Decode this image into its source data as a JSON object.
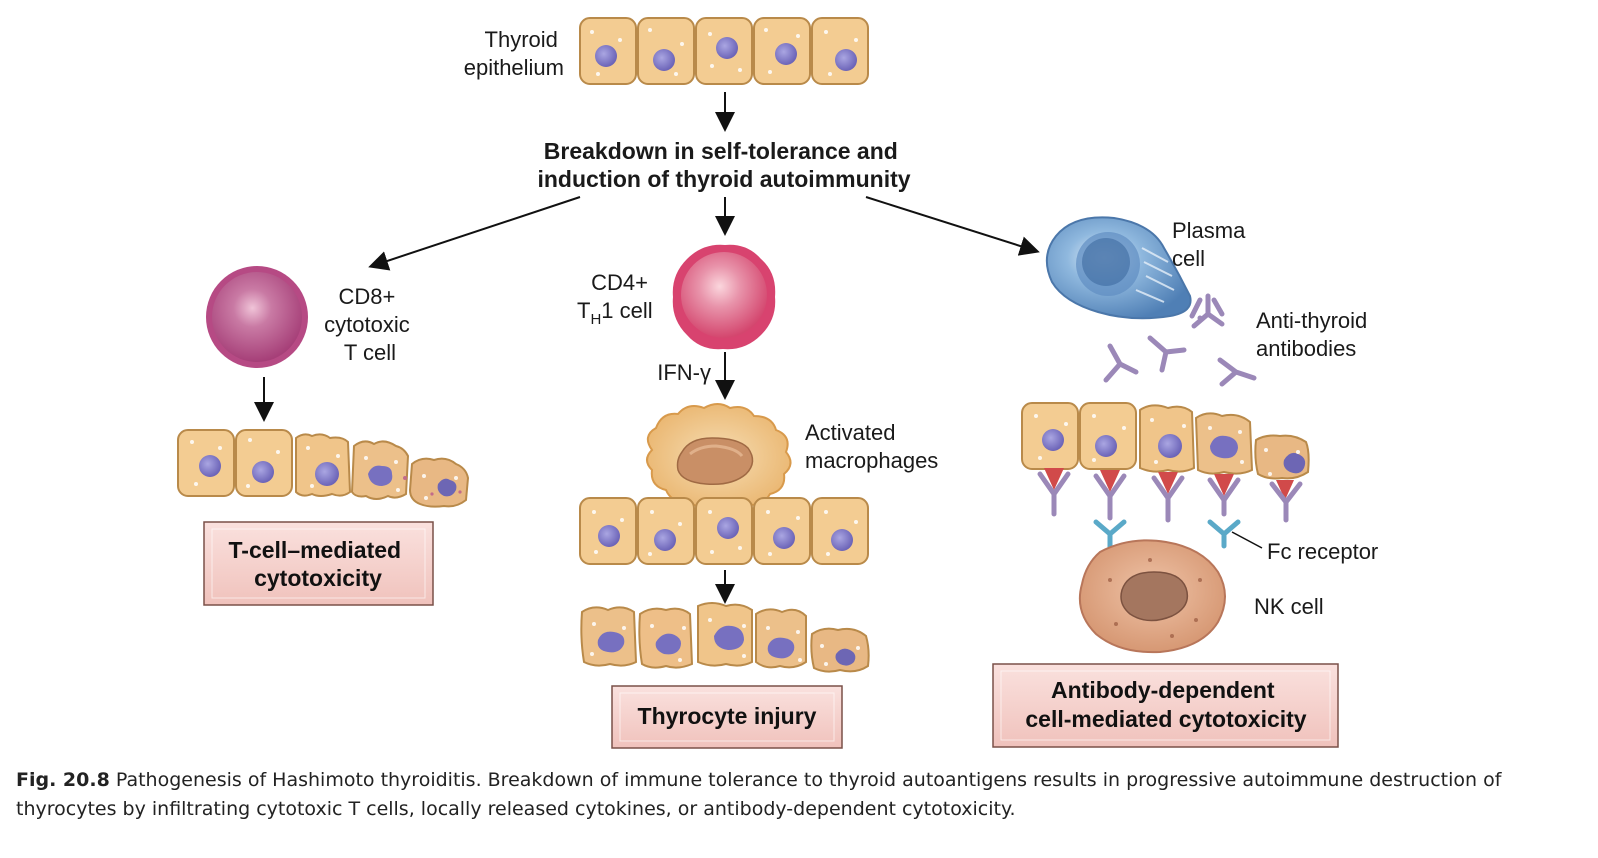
{
  "labels": {
    "thyroid_epithelium": [
      "Thyroid",
      "epithelium"
    ],
    "breakdown": [
      "Breakdown in self-tolerance and",
      "induction of thyroid autoimmunity"
    ],
    "cd8": [
      "CD8+",
      "cytotoxic",
      "T cell"
    ],
    "cd4_line1": "CD4+",
    "cd4_t": "T",
    "cd4_sub": "H",
    "cd4_rest": "1 cell",
    "ifn": "IFN-γ",
    "macrophages": [
      "Activated",
      "macrophages"
    ],
    "plasma": [
      "Plasma",
      "cell"
    ],
    "antibodies": [
      "Anti-thyroid",
      "antibodies"
    ],
    "fc_receptor": "Fc receptor",
    "nk_cell": "NK cell"
  },
  "outcomes": {
    "tcell": [
      "T-cell–mediated",
      "cytotoxicity"
    ],
    "thyrocyte": "Thyrocyte injury",
    "adcc": [
      "Antibody-dependent",
      "cell-mediated cytotoxicity"
    ]
  },
  "caption": {
    "figure": "Fig. 20.8",
    "text": "Pathogenesis of Hashimoto thyroiditis. Breakdown of immune tolerance to thyroid autoantigens results in progressive autoimmune destruction of thyrocytes by infiltrating cytotoxic T cells, locally released cytokines, or antibody-dependent cytotoxicity."
  },
  "colors": {
    "cell_fill": "#f3cc92",
    "cell_stroke": "#b98a4a",
    "nucleus": "#7d77c6",
    "box_fill": "#f6d2cf",
    "tcell": "#c3578c",
    "th1": "#e06a8e",
    "plasma": "#6a9ed0",
    "antibody": "#9b88b8",
    "fc": "#5aa9c8"
  }
}
